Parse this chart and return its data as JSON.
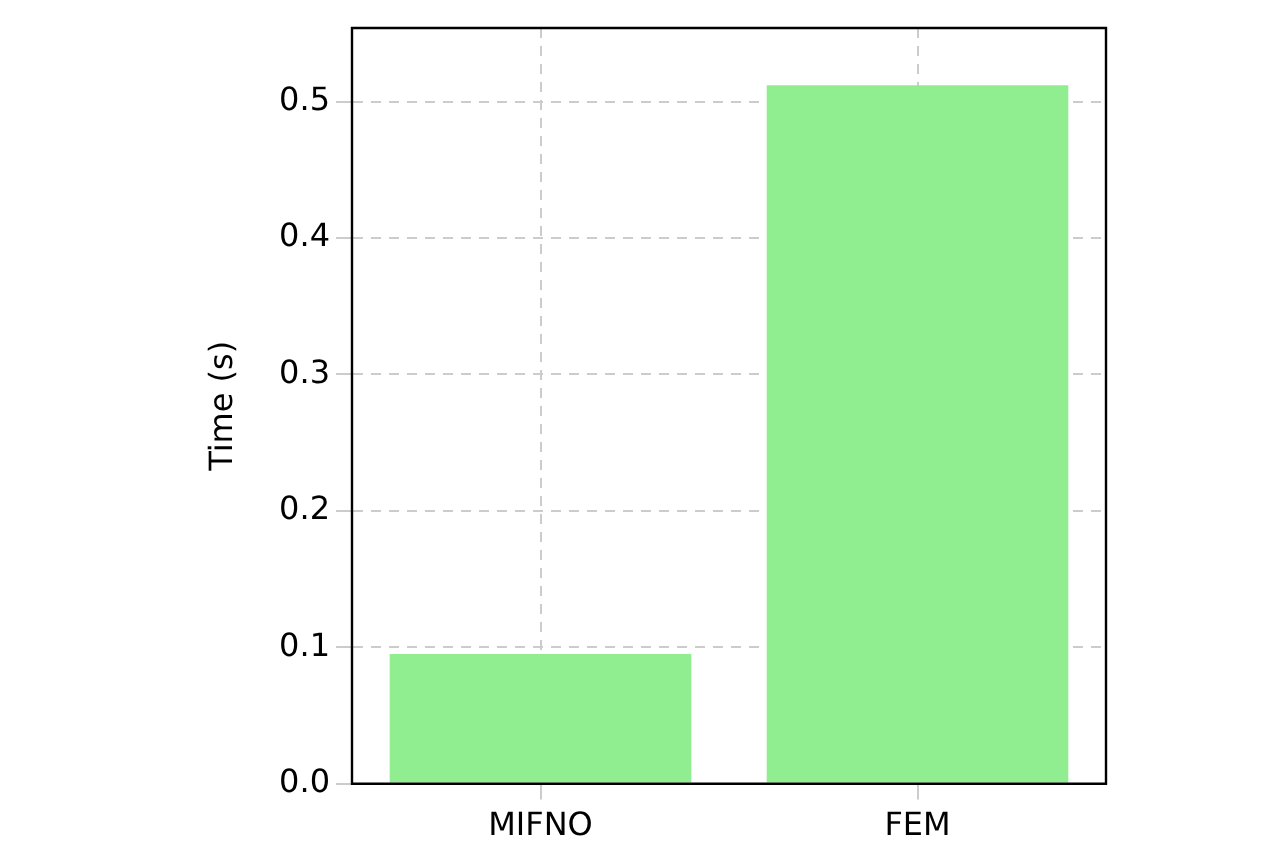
{
  "chart_data": {
    "type": "bar",
    "ylabel": "Time (s)",
    "categories": [
      "MIFNO",
      "FEM"
    ],
    "values": [
      0.095,
      0.512
    ],
    "color": "#90ee90",
    "ylim": [
      0,
      0.554
    ],
    "yticks": [
      {
        "value": 0,
        "label": "0.0"
      },
      {
        "value": 0.1,
        "label": "0.1"
      },
      {
        "value": 0.2,
        "label": "0.2"
      },
      {
        "value": 0.3,
        "label": "0.3"
      },
      {
        "value": 0.4,
        "label": "0.4"
      },
      {
        "value": 0.5,
        "label": "0.5"
      }
    ],
    "grid": true
  }
}
